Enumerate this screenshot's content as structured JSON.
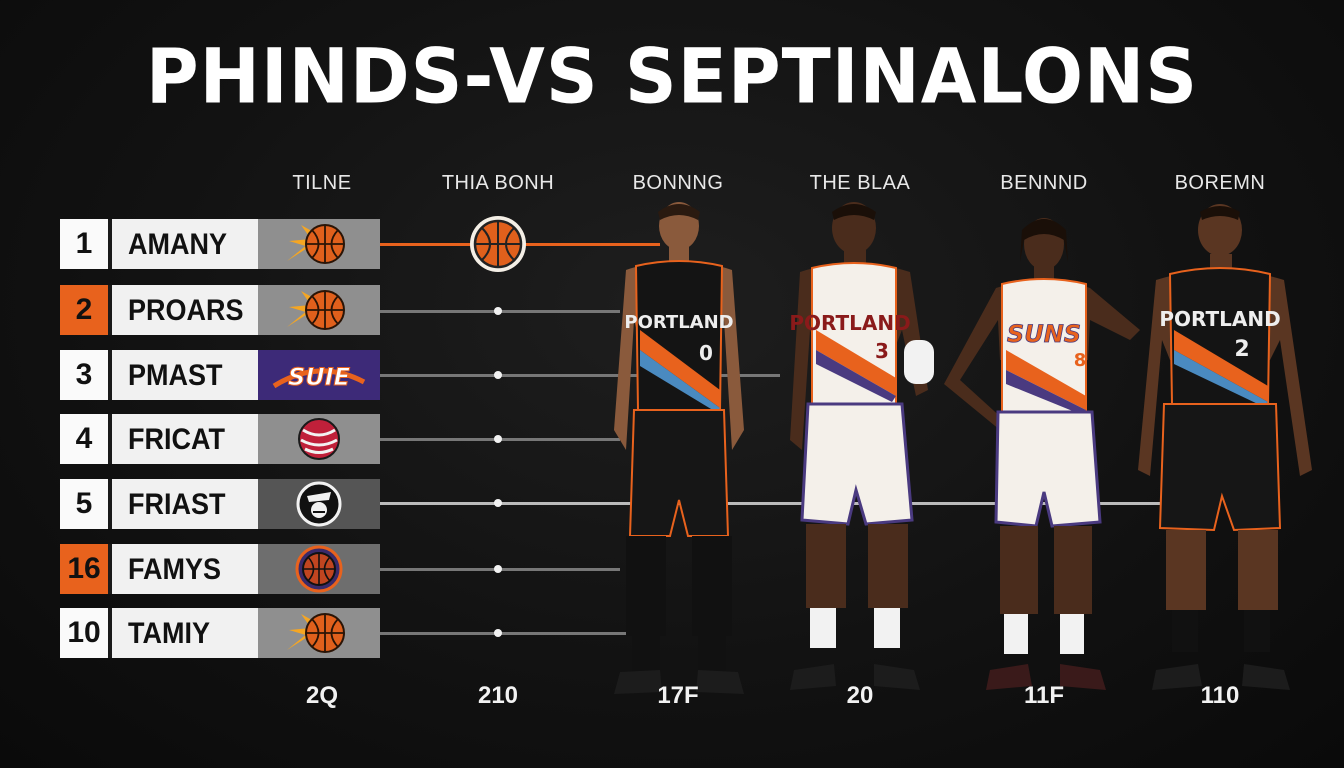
{
  "title": "PHINDS-VS SEPTINALONS",
  "columns": [
    "TILNE",
    "THIA BONH",
    "BONNNG",
    "THE BLAA",
    "BENNND",
    "BOREMN"
  ],
  "footer_values": [
    "2Q",
    "210",
    "17F",
    "20",
    "11F",
    "110"
  ],
  "rows": [
    {
      "rank": "1",
      "name": "AMANY",
      "logo": "suns-basketball-icon",
      "highlight": false
    },
    {
      "rank": "2",
      "name": "PROARS",
      "logo": "suns-basketball-icon",
      "highlight": true
    },
    {
      "rank": "3",
      "name": "PMAST",
      "logo": "suns-wordmark-icon",
      "logo_text": "SUIE",
      "highlight": false
    },
    {
      "rank": "4",
      "name": "FRICAT",
      "logo": "pinwheel-ball-icon",
      "highlight": false
    },
    {
      "rank": "5",
      "name": "FRIAST",
      "logo": "mascot-badge-icon",
      "highlight": false
    },
    {
      "rank": "16",
      "name": "FAMYS",
      "logo": "ringed-ball-icon",
      "highlight": true
    },
    {
      "rank": "10",
      "name": "TAMIY",
      "logo": "suns-basketball-icon",
      "highlight": false
    }
  ],
  "players": [
    {
      "jersey_text": "PORTLAND",
      "number": "0",
      "kit": "dark"
    },
    {
      "jersey_text": "PORTLAND",
      "number": "3",
      "kit": "light"
    },
    {
      "jersey_text": "SUNS",
      "number": "8",
      "kit": "light"
    },
    {
      "jersey_text": "PORTLAND",
      "number": "2",
      "kit": "dark"
    }
  ],
  "colors": {
    "accent": "#e8621d",
    "purple": "#3d2a78",
    "background": "#121212"
  }
}
